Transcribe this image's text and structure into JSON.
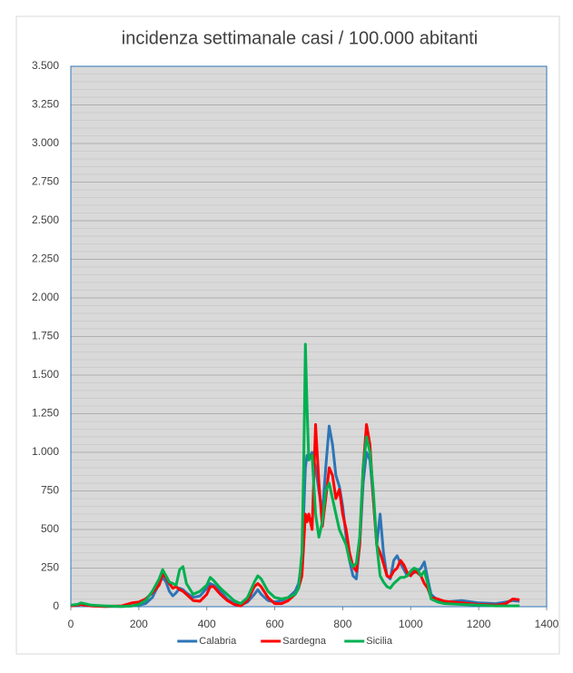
{
  "chart_data": {
    "type": "line",
    "title": "incidenza settimanale casi / 100.000 abitanti",
    "x": [
      0,
      20,
      30,
      40,
      60,
      100,
      150,
      180,
      200,
      220,
      240,
      260,
      270,
      280,
      290,
      300,
      310,
      320,
      330,
      340,
      360,
      380,
      400,
      410,
      420,
      440,
      460,
      480,
      500,
      520,
      540,
      550,
      560,
      580,
      600,
      620,
      640,
      660,
      670,
      680,
      685,
      690,
      695,
      700,
      710,
      720,
      730,
      740,
      750,
      760,
      770,
      780,
      790,
      800,
      810,
      820,
      830,
      840,
      850,
      860,
      870,
      880,
      890,
      900,
      910,
      920,
      930,
      940,
      950,
      960,
      970,
      980,
      990,
      1000,
      1010,
      1020,
      1030,
      1040,
      1050,
      1060,
      1080,
      1100,
      1150,
      1200,
      1250,
      1280,
      1300,
      1320
    ],
    "series": [
      {
        "name": "Calabria",
        "color": "#2e75b6",
        "values": [
          5,
          15,
          20,
          15,
          5,
          2,
          2,
          5,
          10,
          20,
          60,
          150,
          190,
          160,
          100,
          70,
          90,
          120,
          110,
          90,
          60,
          70,
          120,
          150,
          140,
          100,
          50,
          20,
          10,
          30,
          80,
          110,
          80,
          40,
          30,
          40,
          60,
          100,
          150,
          300,
          600,
          900,
          980,
          950,
          1000,
          900,
          750,
          600,
          900,
          1170,
          1050,
          850,
          780,
          650,
          450,
          300,
          200,
          180,
          400,
          800,
          1000,
          950,
          700,
          400,
          600,
          350,
          200,
          180,
          300,
          330,
          280,
          240,
          200,
          210,
          220,
          230,
          250,
          290,
          180,
          80,
          40,
          30,
          40,
          25,
          20,
          30,
          40,
          35
        ]
      },
      {
        "name": "Sardegna",
        "color": "#ff0000",
        "values": [
          5,
          10,
          15,
          10,
          5,
          2,
          5,
          25,
          30,
          50,
          90,
          140,
          210,
          190,
          150,
          120,
          130,
          110,
          100,
          80,
          40,
          35,
          80,
          130,
          130,
          80,
          40,
          15,
          5,
          40,
          130,
          150,
          130,
          60,
          20,
          20,
          40,
          80,
          120,
          200,
          400,
          600,
          550,
          600,
          500,
          1180,
          800,
          520,
          700,
          900,
          850,
          700,
          760,
          600,
          500,
          350,
          260,
          230,
          400,
          900,
          1180,
          1050,
          700,
          400,
          350,
          280,
          200,
          190,
          230,
          250,
          300,
          270,
          220,
          200,
          230,
          220,
          200,
          150,
          120,
          60,
          50,
          35,
          25,
          15,
          10,
          20,
          50,
          45
        ]
      },
      {
        "name": "Sicilia",
        "color": "#00b050",
        "values": [
          10,
          15,
          25,
          20,
          10,
          5,
          2,
          5,
          15,
          40,
          100,
          180,
          240,
          200,
          160,
          150,
          140,
          240,
          260,
          150,
          80,
          100,
          140,
          190,
          170,
          120,
          80,
          40,
          20,
          60,
          160,
          200,
          180,
          100,
          60,
          50,
          60,
          80,
          120,
          350,
          900,
          1700,
          1300,
          950,
          980,
          600,
          450,
          550,
          750,
          800,
          700,
          600,
          500,
          450,
          400,
          300,
          260,
          280,
          450,
          900,
          1100,
          1000,
          750,
          400,
          200,
          160,
          130,
          120,
          150,
          170,
          190,
          190,
          200,
          230,
          250,
          240,
          200,
          230,
          150,
          50,
          30,
          20,
          15,
          10,
          5,
          5,
          5,
          5
        ]
      }
    ],
    "xlim": [
      0,
      1400
    ],
    "xticks": [
      0,
      200,
      400,
      600,
      800,
      1000,
      1200,
      1400
    ],
    "ylim": [
      0,
      3500
    ],
    "yticks": [
      0,
      250,
      500,
      750,
      {
        "value": 1000,
        "label": "1.000"
      },
      {
        "value": 1250,
        "label": "1.250"
      },
      {
        "value": 1500,
        "label": "1.500"
      },
      {
        "value": 1750,
        "label": "1.750"
      },
      {
        "value": 2000,
        "label": "2.000"
      },
      {
        "value": 2250,
        "label": "2.250"
      },
      {
        "value": 2500,
        "label": "2.500"
      },
      {
        "value": 2750,
        "label": "2.750"
      },
      {
        "value": 3000,
        "label": "3.000"
      },
      {
        "value": 3250,
        "label": "3.250"
      },
      {
        "value": 3500,
        "label": "3.500"
      }
    ],
    "grid": true,
    "minor_grid_step": 50,
    "legend": "bottom"
  }
}
